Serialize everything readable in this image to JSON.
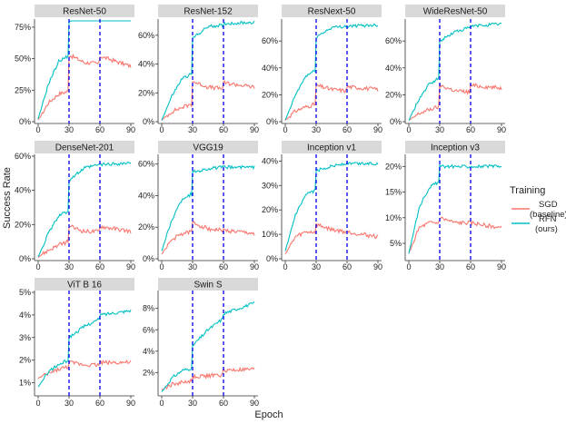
{
  "chart_data": {
    "type": "line",
    "layout": "facet-grid",
    "xlabel": "Epoch",
    "ylabel": "Success Rate",
    "x_ticks": [
      0,
      30,
      60,
      90
    ],
    "xlim": [
      0,
      90
    ],
    "vlines": [
      30,
      60
    ],
    "vline_color": "#0000ee",
    "legend": {
      "title": "Training",
      "position": "right",
      "entries": [
        {
          "key": "sgd",
          "label_line1": "SGD",
          "label_line2": "(baseline)",
          "color": "#f8766d"
        },
        {
          "key": "rfn",
          "label_line1": "RFN",
          "label_line2": "(ours)",
          "color": "#00bfc4"
        }
      ]
    },
    "panels": [
      {
        "title": "ResNet-50",
        "ylim": [
          0,
          0.8
        ],
        "yticks": [
          0,
          0.25,
          0.5,
          0.75
        ],
        "ytick_labels": [
          "0%",
          "25%",
          "50%",
          "75%"
        ],
        "rfn": [
          [
            0,
            0.02
          ],
          [
            10,
            0.3
          ],
          [
            20,
            0.48
          ],
          [
            29,
            0.52
          ],
          [
            30,
            0.8
          ],
          [
            45,
            0.85
          ],
          [
            59,
            0.86
          ],
          [
            60,
            0.86
          ],
          [
            90,
            0.86
          ]
        ],
        "sgd": [
          [
            0,
            0.01
          ],
          [
            10,
            0.15
          ],
          [
            20,
            0.22
          ],
          [
            29,
            0.24
          ],
          [
            30,
            0.53
          ],
          [
            45,
            0.47
          ],
          [
            59,
            0.46
          ],
          [
            60,
            0.52
          ],
          [
            90,
            0.44
          ]
        ]
      },
      {
        "title": "ResNet-152",
        "ylim": [
          0,
          0.7
        ],
        "yticks": [
          0,
          0.2,
          0.4,
          0.6
        ],
        "ytick_labels": [
          "0%",
          "20%",
          "40%",
          "60%"
        ],
        "rfn": [
          [
            0,
            0.01
          ],
          [
            10,
            0.18
          ],
          [
            20,
            0.3
          ],
          [
            29,
            0.33
          ],
          [
            30,
            0.58
          ],
          [
            45,
            0.66
          ],
          [
            59,
            0.67
          ],
          [
            60,
            0.68
          ],
          [
            90,
            0.69
          ]
        ],
        "sgd": [
          [
            0,
            0.01
          ],
          [
            10,
            0.07
          ],
          [
            20,
            0.1
          ],
          [
            29,
            0.12
          ],
          [
            30,
            0.28
          ],
          [
            45,
            0.24
          ],
          [
            59,
            0.23
          ],
          [
            60,
            0.27
          ],
          [
            90,
            0.24
          ]
        ]
      },
      {
        "title": "ResNext-50",
        "ylim": [
          0,
          0.75
        ],
        "yticks": [
          0,
          0.2,
          0.4,
          0.6
        ],
        "ytick_labels": [
          "0%",
          "20%",
          "40%",
          "60%"
        ],
        "rfn": [
          [
            0,
            0.01
          ],
          [
            10,
            0.2
          ],
          [
            20,
            0.34
          ],
          [
            29,
            0.38
          ],
          [
            30,
            0.63
          ],
          [
            45,
            0.7
          ],
          [
            59,
            0.71
          ],
          [
            60,
            0.71
          ],
          [
            90,
            0.72
          ]
        ],
        "sgd": [
          [
            0,
            0.01
          ],
          [
            10,
            0.08
          ],
          [
            20,
            0.11
          ],
          [
            29,
            0.13
          ],
          [
            30,
            0.27
          ],
          [
            45,
            0.24
          ],
          [
            59,
            0.23
          ],
          [
            60,
            0.26
          ],
          [
            90,
            0.24
          ]
        ]
      },
      {
        "title": "WideResNet-50",
        "ylim": [
          0,
          0.75
        ],
        "yticks": [
          0,
          0.2,
          0.4,
          0.6
        ],
        "ytick_labels": [
          "0%",
          "20%",
          "40%",
          "60%"
        ],
        "rfn": [
          [
            0,
            0.01
          ],
          [
            10,
            0.17
          ],
          [
            20,
            0.28
          ],
          [
            29,
            0.32
          ],
          [
            30,
            0.6
          ],
          [
            45,
            0.67
          ],
          [
            59,
            0.7
          ],
          [
            60,
            0.71
          ],
          [
            90,
            0.73
          ]
        ],
        "sgd": [
          [
            0,
            0.01
          ],
          [
            10,
            0.06
          ],
          [
            20,
            0.09
          ],
          [
            29,
            0.11
          ],
          [
            30,
            0.27
          ],
          [
            45,
            0.23
          ],
          [
            59,
            0.22
          ],
          [
            60,
            0.27
          ],
          [
            90,
            0.25
          ]
        ]
      },
      {
        "title": "DenseNet-201",
        "ylim": [
          0,
          0.6
        ],
        "yticks": [
          0,
          0.2,
          0.4,
          0.6
        ],
        "ytick_labels": [
          "0%",
          "20%",
          "40%",
          "60%"
        ],
        "rfn": [
          [
            0,
            0.01
          ],
          [
            10,
            0.15
          ],
          [
            20,
            0.25
          ],
          [
            29,
            0.28
          ],
          [
            30,
            0.46
          ],
          [
            45,
            0.53
          ],
          [
            59,
            0.55
          ],
          [
            60,
            0.55
          ],
          [
            90,
            0.56
          ]
        ],
        "sgd": [
          [
            0,
            0.01
          ],
          [
            10,
            0.05
          ],
          [
            20,
            0.08
          ],
          [
            29,
            0.1
          ],
          [
            30,
            0.19
          ],
          [
            45,
            0.16
          ],
          [
            59,
            0.16
          ],
          [
            60,
            0.19
          ],
          [
            90,
            0.16
          ]
        ]
      },
      {
        "title": "VGG19",
        "ylim": [
          0,
          0.65
        ],
        "yticks": [
          0,
          0.2,
          0.4,
          0.6
        ],
        "ytick_labels": [
          "0%",
          "20%",
          "40%",
          "60%"
        ],
        "rfn": [
          [
            0,
            0.05
          ],
          [
            10,
            0.25
          ],
          [
            20,
            0.38
          ],
          [
            29,
            0.41
          ],
          [
            30,
            0.55
          ],
          [
            45,
            0.57
          ],
          [
            59,
            0.58
          ],
          [
            60,
            0.58
          ],
          [
            90,
            0.58
          ]
        ],
        "sgd": [
          [
            0,
            0.03
          ],
          [
            10,
            0.12
          ],
          [
            20,
            0.16
          ],
          [
            29,
            0.17
          ],
          [
            30,
            0.23
          ],
          [
            45,
            0.19
          ],
          [
            59,
            0.18
          ],
          [
            60,
            0.18
          ],
          [
            90,
            0.16
          ]
        ]
      },
      {
        "title": "Inception v1",
        "ylim": [
          0,
          0.42
        ],
        "yticks": [
          0,
          0.1,
          0.2,
          0.3,
          0.4
        ],
        "ytick_labels": [
          "0%",
          "10%",
          "20%",
          "30%",
          "40%"
        ],
        "rfn": [
          [
            0,
            0.03
          ],
          [
            10,
            0.18
          ],
          [
            20,
            0.26
          ],
          [
            29,
            0.28
          ],
          [
            30,
            0.36
          ],
          [
            45,
            0.38
          ],
          [
            59,
            0.39
          ],
          [
            60,
            0.39
          ],
          [
            90,
            0.39
          ]
        ],
        "sgd": [
          [
            0,
            0.02
          ],
          [
            10,
            0.09
          ],
          [
            20,
            0.11
          ],
          [
            29,
            0.11
          ],
          [
            30,
            0.14
          ],
          [
            45,
            0.12
          ],
          [
            59,
            0.11
          ],
          [
            60,
            0.11
          ],
          [
            90,
            0.09
          ]
        ]
      },
      {
        "title": "Inception v3",
        "ylim": [
          0.02,
          0.22
        ],
        "yticks": [
          0.05,
          0.1,
          0.15,
          0.2
        ],
        "ytick_labels": [
          "5%",
          "10%",
          "15%",
          "20%"
        ],
        "rfn": [
          [
            0,
            0.03
          ],
          [
            10,
            0.12
          ],
          [
            20,
            0.16
          ],
          [
            29,
            0.17
          ],
          [
            30,
            0.2
          ],
          [
            45,
            0.2
          ],
          [
            59,
            0.2
          ],
          [
            60,
            0.2
          ],
          [
            90,
            0.2
          ]
        ],
        "sgd": [
          [
            0,
            0.03
          ],
          [
            10,
            0.08
          ],
          [
            20,
            0.09
          ],
          [
            29,
            0.09
          ],
          [
            30,
            0.1
          ],
          [
            45,
            0.09
          ],
          [
            59,
            0.09
          ],
          [
            60,
            0.09
          ],
          [
            90,
            0.08
          ]
        ]
      },
      {
        "title": "ViT B 16",
        "ylim": [
          0.005,
          0.05
        ],
        "yticks": [
          0.01,
          0.02,
          0.03,
          0.04,
          0.05
        ],
        "ytick_labels": [
          "1%",
          "2%",
          "3%",
          "4%",
          "5%"
        ],
        "rfn": [
          [
            0,
            0.008
          ],
          [
            10,
            0.015
          ],
          [
            20,
            0.018
          ],
          [
            29,
            0.02
          ],
          [
            30,
            0.03
          ],
          [
            45,
            0.035
          ],
          [
            59,
            0.038
          ],
          [
            60,
            0.04
          ],
          [
            90,
            0.042
          ]
        ],
        "sgd": [
          [
            0,
            0.012
          ],
          [
            10,
            0.014
          ],
          [
            20,
            0.016
          ],
          [
            29,
            0.017
          ],
          [
            30,
            0.019
          ],
          [
            45,
            0.018
          ],
          [
            59,
            0.018
          ],
          [
            60,
            0.019
          ],
          [
            90,
            0.019
          ]
        ]
      },
      {
        "title": "Swin S",
        "ylim": [
          0,
          0.095
        ],
        "yticks": [
          0.02,
          0.04,
          0.06,
          0.08
        ],
        "ytick_labels": [
          "2%",
          "4%",
          "6%",
          "8%"
        ],
        "rfn": [
          [
            0,
            0.002
          ],
          [
            10,
            0.015
          ],
          [
            20,
            0.022
          ],
          [
            29,
            0.024
          ],
          [
            30,
            0.045
          ],
          [
            45,
            0.06
          ],
          [
            59,
            0.07
          ],
          [
            60,
            0.075
          ],
          [
            90,
            0.085
          ]
        ],
        "sgd": [
          [
            0,
            0.004
          ],
          [
            10,
            0.009
          ],
          [
            20,
            0.011
          ],
          [
            29,
            0.012
          ],
          [
            30,
            0.016
          ],
          [
            45,
            0.017
          ],
          [
            59,
            0.018
          ],
          [
            60,
            0.022
          ],
          [
            90,
            0.023
          ]
        ]
      }
    ]
  }
}
